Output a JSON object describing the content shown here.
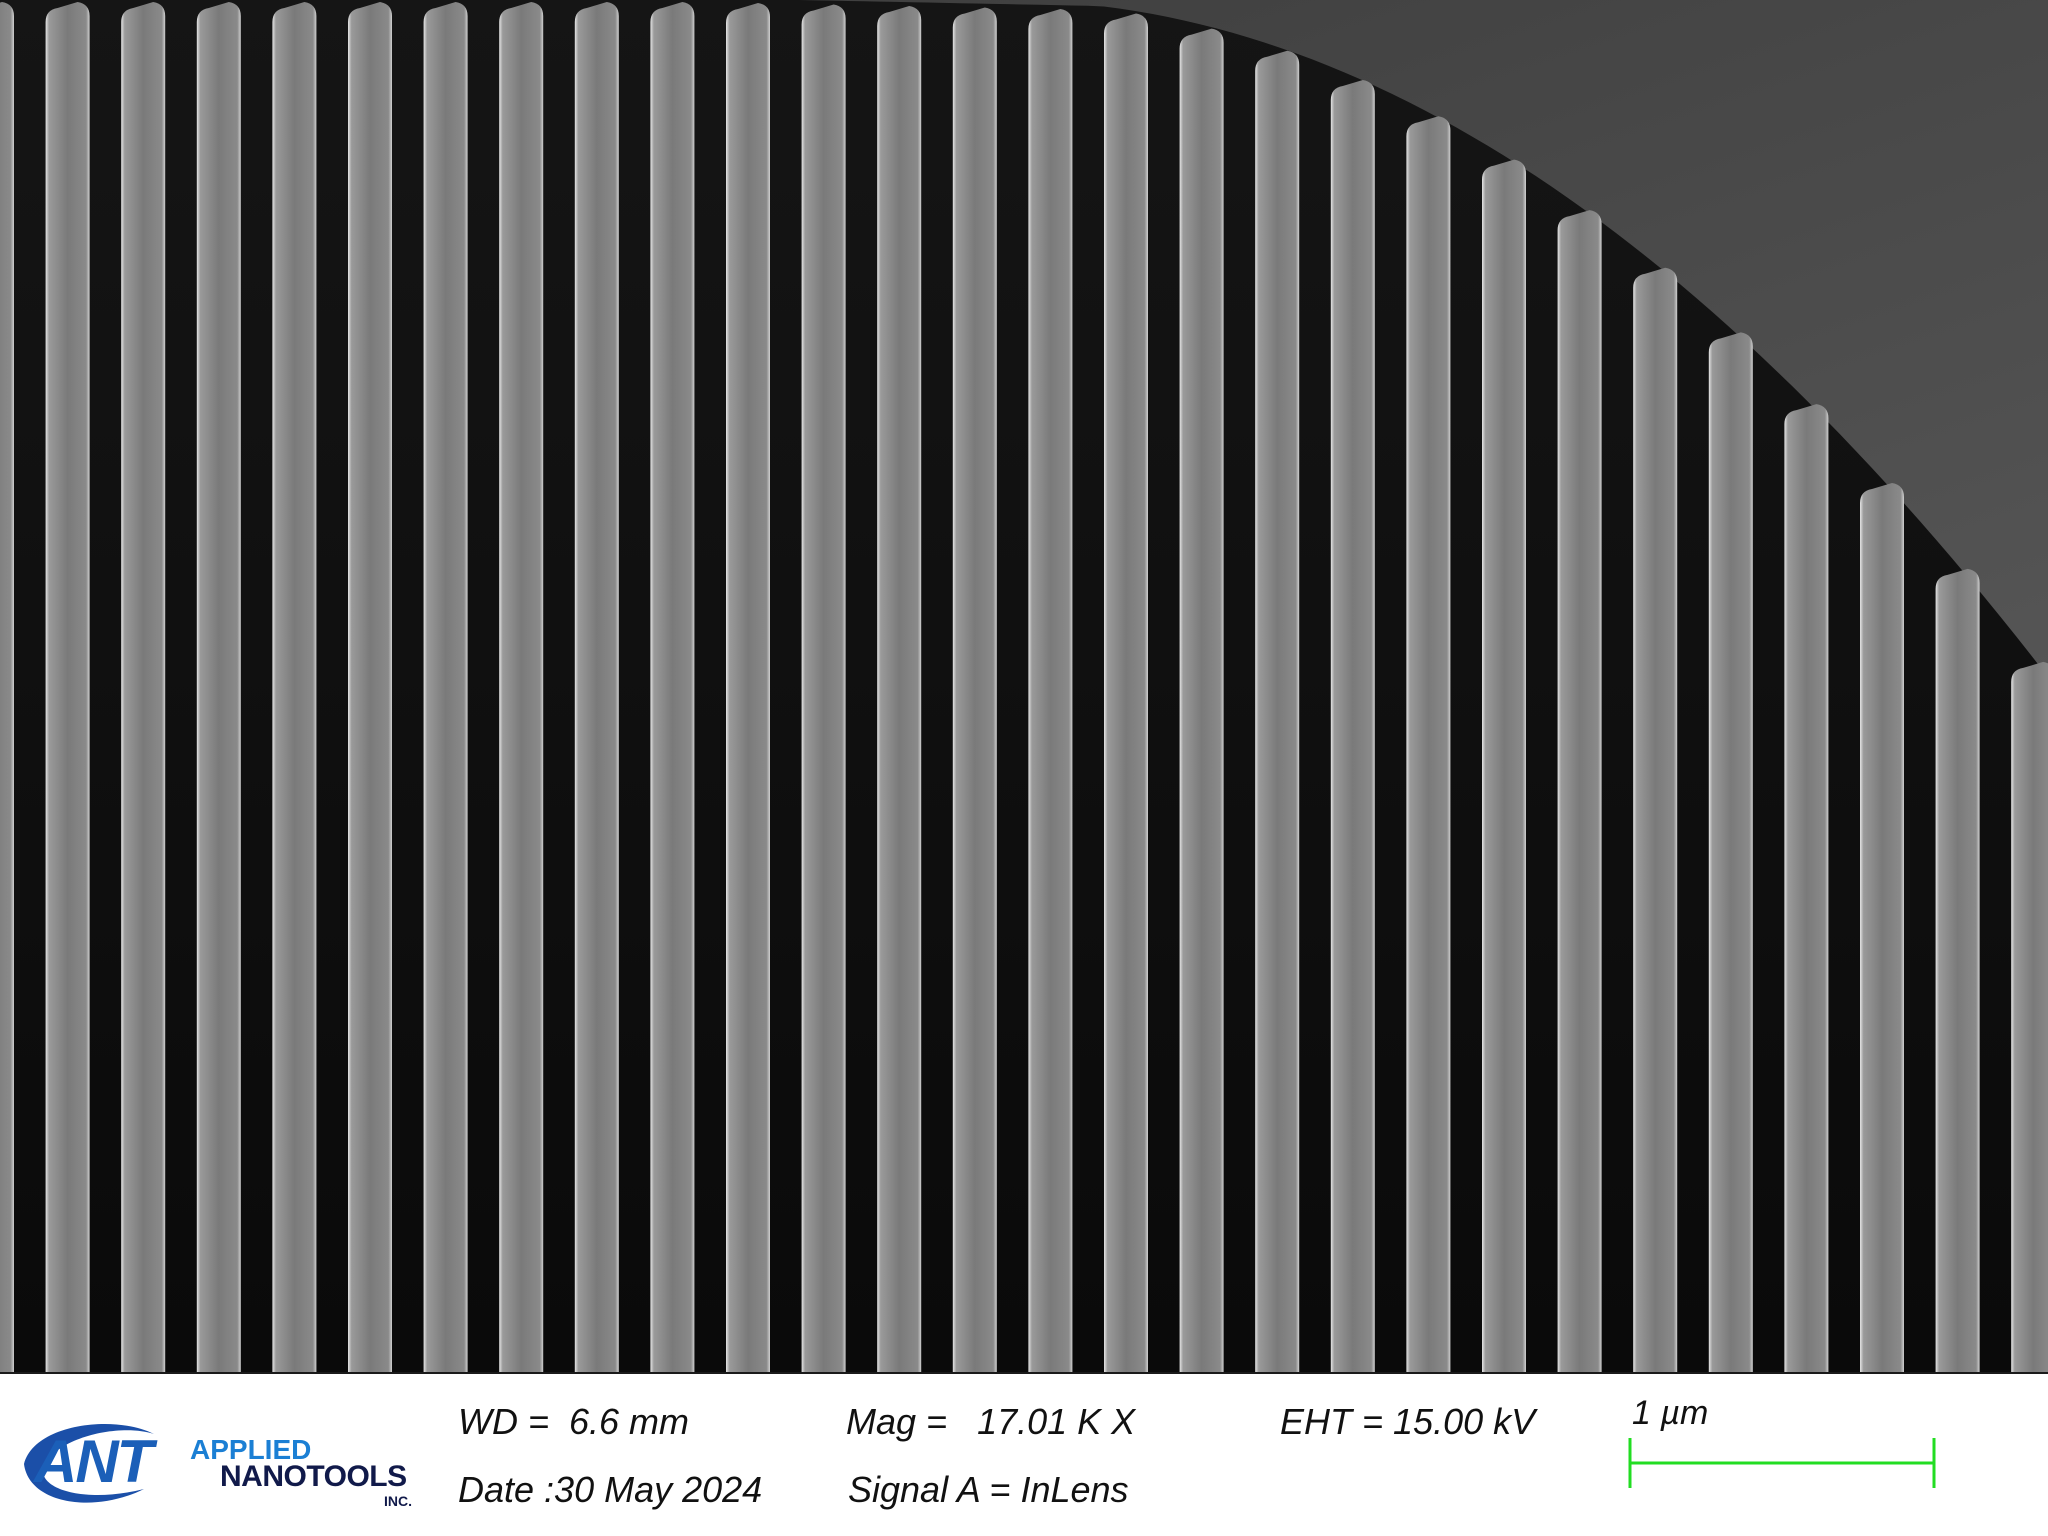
{
  "image": {
    "subject": "sem-grating-lines",
    "colors": {
      "background_trench": "#0b0b0b",
      "upper_plateau": "#4a4a4a",
      "line_edge": "#d8d8d8",
      "scale_bar": "#22dd22",
      "logo_blue": "#1b5fb8"
    }
  },
  "logo": {
    "mark": "ANT",
    "line1": "APPLIED",
    "line2": "NANOTOOLS",
    "suffix": "INC."
  },
  "info": {
    "wd": "WD =  6.6 mm",
    "date": "Date :30 May 2024",
    "mag": "Mag =   17.01 K X",
    "signal": "Signal A = InLens",
    "eht": "EHT = 15.00 kV"
  },
  "scale": {
    "label": "1 µm",
    "value": 1,
    "unit": "µm"
  }
}
